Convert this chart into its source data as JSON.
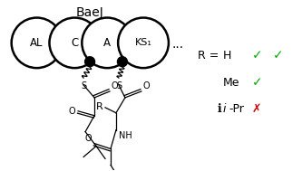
{
  "bg_color": "#ffffff",
  "title": "BaeJ",
  "title_fontsize": 10,
  "domain_labels": [
    "AL",
    "C",
    "A",
    "KS₁"
  ],
  "legend_fontsize": 9,
  "check_green": "#00aa00",
  "check_red": "#cc0000"
}
